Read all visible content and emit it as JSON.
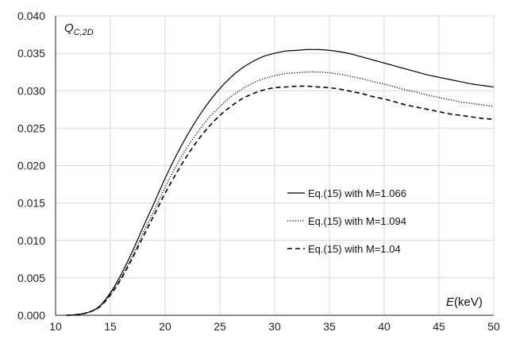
{
  "chart_data": {
    "type": "line",
    "title": "",
    "xlabel": {
      "var": "E",
      "unit": "(keV)"
    },
    "ylabel": {
      "var": "Q",
      "sub": "C,2D"
    },
    "xlim": [
      10,
      50
    ],
    "ylim": [
      0,
      0.04
    ],
    "xticks": [
      "10",
      "15",
      "20",
      "25",
      "30",
      "35",
      "40",
      "45",
      "50"
    ],
    "yticks": [
      "0.000",
      "0.005",
      "0.010",
      "0.015",
      "0.020",
      "0.025",
      "0.030",
      "0.035",
      "0.040"
    ],
    "grid": true,
    "legend_position": "middle-right",
    "series": [
      {
        "name": "Eq.(15) with M=1.066",
        "style": "solid",
        "color": "#000000",
        "x": [
          11,
          12,
          13,
          14,
          15,
          16,
          17,
          18,
          19,
          20,
          21,
          22,
          23,
          24,
          25,
          26,
          27,
          28,
          29,
          30,
          31,
          32,
          33,
          34,
          35,
          36,
          37,
          38,
          39,
          40,
          41,
          42,
          43,
          44,
          45,
          46,
          47,
          48,
          49,
          50
        ],
        "y": [
          0.0,
          0.0001,
          0.0004,
          0.0012,
          0.003,
          0.0055,
          0.0085,
          0.0118,
          0.015,
          0.0183,
          0.0213,
          0.024,
          0.0264,
          0.0285,
          0.0303,
          0.0318,
          0.033,
          0.0339,
          0.0346,
          0.035,
          0.0353,
          0.0354,
          0.0355,
          0.0355,
          0.0354,
          0.0352,
          0.0349,
          0.0345,
          0.0341,
          0.0337,
          0.0333,
          0.0329,
          0.0325,
          0.0321,
          0.0318,
          0.0315,
          0.0312,
          0.0309,
          0.0307,
          0.0305
        ]
      },
      {
        "name": "Eq.(15) with M=1.094",
        "style": "dotted",
        "color": "#000000",
        "x": [
          11,
          12,
          13,
          14,
          15,
          16,
          17,
          18,
          19,
          20,
          21,
          22,
          23,
          24,
          25,
          26,
          27,
          28,
          29,
          30,
          31,
          32,
          33,
          34,
          35,
          36,
          37,
          38,
          39,
          40,
          41,
          42,
          43,
          44,
          45,
          46,
          47,
          48,
          49,
          50
        ],
        "y": [
          0.0,
          0.0001,
          0.0004,
          0.0011,
          0.0028,
          0.0051,
          0.0079,
          0.011,
          0.014,
          0.0171,
          0.0199,
          0.0224,
          0.0245,
          0.0264,
          0.0279,
          0.0292,
          0.0302,
          0.031,
          0.0316,
          0.032,
          0.0323,
          0.0324,
          0.0325,
          0.0325,
          0.0324,
          0.0322,
          0.0319,
          0.0316,
          0.0312,
          0.0309,
          0.0305,
          0.0301,
          0.0298,
          0.0294,
          0.0291,
          0.0288,
          0.0285,
          0.0283,
          0.0281,
          0.0279
        ]
      },
      {
        "name": "Eq.(15) with M=1.04",
        "style": "dashed",
        "color": "#000000",
        "x": [
          11,
          12,
          13,
          14,
          15,
          16,
          17,
          18,
          19,
          20,
          21,
          22,
          23,
          24,
          25,
          26,
          27,
          28,
          29,
          30,
          31,
          32,
          33,
          34,
          35,
          36,
          37,
          38,
          39,
          40,
          41,
          42,
          43,
          44,
          45,
          46,
          47,
          48,
          49,
          50
        ],
        "y": [
          0.0,
          0.0001,
          0.0004,
          0.0011,
          0.0027,
          0.0049,
          0.0076,
          0.0105,
          0.0134,
          0.0163,
          0.0189,
          0.0213,
          0.0234,
          0.0252,
          0.0267,
          0.0279,
          0.0289,
          0.0296,
          0.0301,
          0.0304,
          0.0305,
          0.0306,
          0.0306,
          0.0305,
          0.0304,
          0.0302,
          0.0299,
          0.0296,
          0.0292,
          0.0289,
          0.0285,
          0.0281,
          0.0278,
          0.0275,
          0.0272,
          0.0269,
          0.0267,
          0.0265,
          0.0263,
          0.0262
        ]
      }
    ]
  }
}
